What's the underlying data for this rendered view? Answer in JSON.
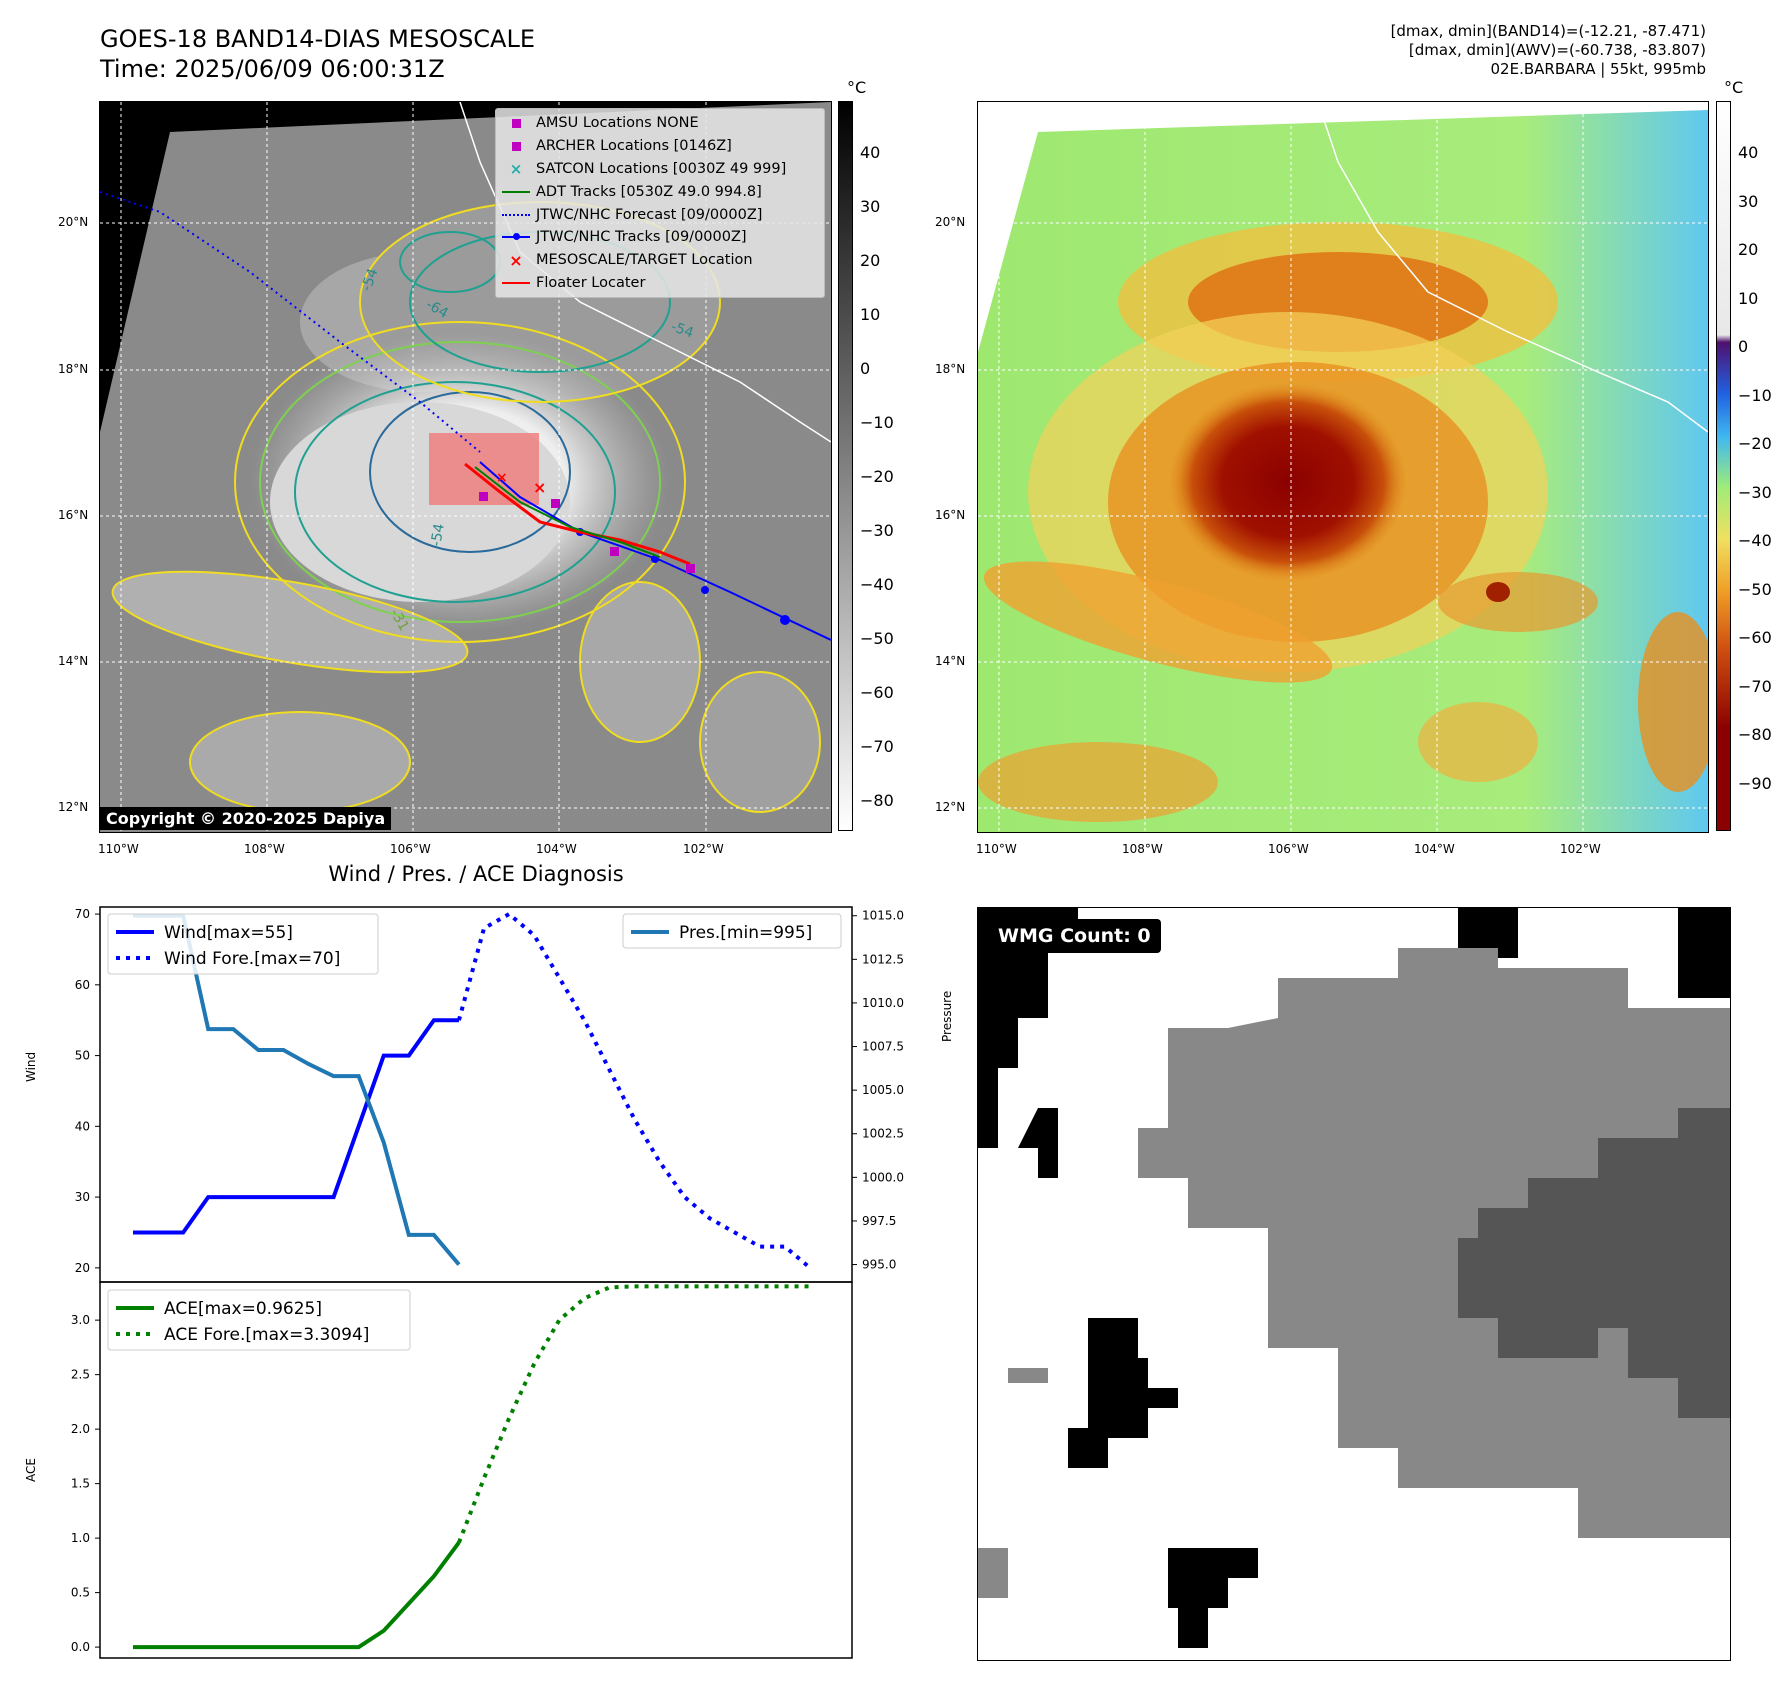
{
  "header": {
    "title_line1": "GOES-18 BAND14-DIAS MESOSCALE",
    "title_line2": "Time: 2025/06/09 06:00:31Z",
    "info_line1": "[dmax, dmin](BAND14)=(-12.21, -87.471)",
    "info_line2": "[dmax, dmin](AWV)=(-60.738, -83.807)",
    "info_line3": "02E.BARBARA | 55kt, 995mb"
  },
  "maps": {
    "lat_labels": [
      "20°N",
      "18°N",
      "16°N",
      "14°N",
      "12°N"
    ],
    "lon_labels": [
      "110°W",
      "108°W",
      "106°W",
      "104°W",
      "102°W"
    ],
    "copyright": "Copyright © 2020-2025 Dapiya",
    "contour_labels": [
      "-54",
      "-64",
      "-54",
      "-54",
      "-31"
    ],
    "legend": [
      {
        "label": "AMSU Locations NONE",
        "color": "#c000c0",
        "kind": "square"
      },
      {
        "label": "ARCHER Locations [0146Z]",
        "color": "#c000c0",
        "kind": "square"
      },
      {
        "label": "SATCON Locations [0030Z 49 999]",
        "color": "#20b0a8",
        "kind": "x"
      },
      {
        "label": "ADT Tracks [0530Z 49.0 994.8]",
        "color": "#008000",
        "kind": "line"
      },
      {
        "label": "JTWC/NHC Forecast [09/0000Z]",
        "color": "#0000ff",
        "kind": "dotted"
      },
      {
        "label": "JTWC/NHC Tracks [09/0000Z]",
        "color": "#0000ff",
        "kind": "dotline"
      },
      {
        "label": "MESOSCALE/TARGET Location",
        "color": "#ff0000",
        "kind": "redx"
      },
      {
        "label": "Floater Locater",
        "color": "#ff0000",
        "kind": "line"
      }
    ],
    "colorbar_left": {
      "unit": "°C",
      "ticks": [
        "40",
        "30",
        "20",
        "10",
        "0",
        "−10",
        "−20",
        "−30",
        "−40",
        "−50",
        "−60",
        "−70",
        "−80"
      ]
    },
    "colorbar_right": {
      "unit": "°C",
      "ticks": [
        "40",
        "30",
        "20",
        "10",
        "0",
        "−10",
        "−20",
        "−30",
        "−40",
        "−50",
        "−60",
        "−70",
        "−80",
        "−90"
      ]
    }
  },
  "wmg": {
    "label": "WMG Count: 0"
  },
  "chart_data": [
    {
      "type": "line",
      "title": "Wind / Pres. / ACE Diagnosis",
      "ylabel": "Wind",
      "ylabel_right": "Pressure",
      "ylim": [
        18,
        71
      ],
      "ylim_right": [
        994,
        1015.5
      ],
      "y_ticks": [
        "70",
        "60",
        "50",
        "40",
        "30",
        "20"
      ],
      "y_ticks_right": [
        "1015.0",
        "1012.5",
        "1010.0",
        "1007.5",
        "1005.0",
        "1002.5",
        "1000.0",
        "997.5",
        "995.0"
      ],
      "x": [
        0,
        1,
        2,
        3,
        4,
        5,
        6,
        7,
        8,
        9,
        10,
        11,
        12,
        13,
        14,
        15,
        16,
        17,
        18,
        19,
        20,
        21,
        22,
        23,
        24,
        25,
        26,
        27
      ],
      "series": [
        {
          "name": "Wind[max=55]",
          "style": "solid",
          "color": "#0000ff",
          "x": [
            0,
            1,
            2,
            3,
            4,
            5,
            6,
            7,
            8,
            9,
            10,
            11,
            12,
            13
          ],
          "values": [
            25,
            25,
            25,
            30,
            30,
            30,
            30,
            30,
            30,
            40,
            50,
            50,
            55,
            55
          ]
        },
        {
          "name": "Wind Fore.[max=70]",
          "style": "dotted",
          "color": "#0000ff",
          "x": [
            13,
            14,
            15,
            16,
            17,
            18,
            19,
            20,
            21,
            22,
            23,
            24,
            25,
            26,
            27
          ],
          "values": [
            55,
            68,
            70,
            67,
            61,
            55,
            48,
            41,
            35,
            30,
            27,
            25,
            23,
            23,
            20
          ]
        },
        {
          "name": "Pres.[min=995]",
          "style": "solid",
          "color": "#1f77b4",
          "axis": "right",
          "x": [
            0,
            1,
            2,
            3,
            4,
            5,
            6,
            7,
            8,
            9,
            10,
            11,
            12,
            13
          ],
          "values": [
            1015,
            1015,
            1015,
            1008.5,
            1008.5,
            1007.3,
            1007.3,
            1006.5,
            1005.8,
            1005.8,
            1002,
            996.7,
            996.7,
            995
          ]
        }
      ]
    },
    {
      "type": "line",
      "ylabel": "ACE",
      "ylim": [
        -0.1,
        3.35
      ],
      "y_ticks": [
        "3.0",
        "2.5",
        "2.0",
        "1.5",
        "1.0",
        "0.5",
        "0.0"
      ],
      "series": [
        {
          "name": "ACE[max=0.9625]",
          "style": "solid",
          "color": "#008000",
          "x": [
            0,
            1,
            2,
            3,
            4,
            5,
            6,
            7,
            8,
            9,
            10,
            11,
            12,
            13
          ],
          "values": [
            0,
            0,
            0,
            0,
            0,
            0,
            0,
            0,
            0,
            0,
            0.15,
            0.4,
            0.65,
            0.96
          ]
        },
        {
          "name": "ACE Fore.[max=3.3094]",
          "style": "dotted",
          "color": "#008000",
          "x": [
            13,
            14,
            15,
            16,
            17,
            18,
            19,
            20,
            21,
            22,
            23,
            24,
            25,
            26,
            27
          ],
          "values": [
            0.96,
            1.55,
            2.1,
            2.6,
            3.0,
            3.2,
            3.3,
            3.31,
            3.31,
            3.31,
            3.31,
            3.31,
            3.31,
            3.31,
            3.31
          ]
        }
      ]
    }
  ]
}
